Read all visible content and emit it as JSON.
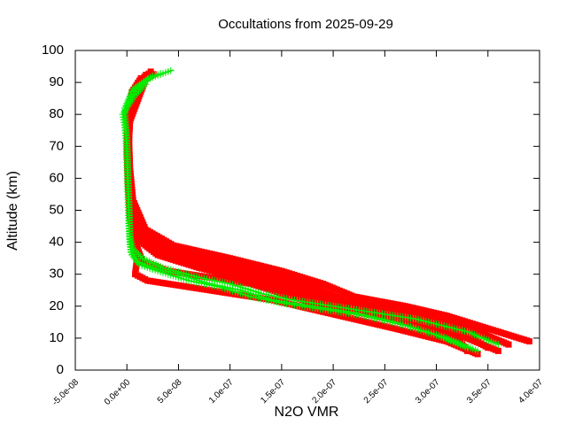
{
  "chart_data": {
    "type": "scatter",
    "title": "Occultations from 2025-09-29",
    "xlabel": "N2O VMR",
    "ylabel": "Altitude (km)",
    "xlim": [
      -5e-08,
      4e-07
    ],
    "ylim": [
      0,
      100
    ],
    "x_ticks": [
      -5e-08,
      0,
      5e-08,
      1e-07,
      1.5e-07,
      2e-07,
      2.5e-07,
      3e-07,
      3.5e-07,
      4e-07
    ],
    "x_tick_labels": [
      "-5.0e-08",
      "0.0e+00",
      "5.0e-08",
      "1.0e-07",
      "1.5e-07",
      "2.0e-07",
      "2.5e-07",
      "3.0e-07",
      "3.5e-07",
      "4.0e-07"
    ],
    "y_ticks": [
      0,
      10,
      20,
      30,
      40,
      50,
      60,
      70,
      80,
      90,
      100
    ],
    "y_tick_labels": [
      "0",
      "10",
      "20",
      "30",
      "40",
      "50",
      "60",
      "70",
      "80",
      "90",
      "100"
    ],
    "grid": false,
    "legend": false,
    "series": [
      {
        "marker": "square",
        "color": "#ff0000",
        "profiles": [
          [
            [
              3.3e-07,
              6
            ],
            [
              3.2e-07,
              10
            ],
            [
              2.8e-07,
              14
            ],
            [
              2.4e-07,
              17
            ],
            [
              1.95e-07,
              20
            ],
            [
              1.6e-07,
              24
            ],
            [
              1.2e-07,
              28
            ],
            [
              7e-08,
              32
            ],
            [
              3e-08,
              36
            ],
            [
              1e-08,
              41
            ],
            [
              3e-09,
              50
            ],
            [
              1e-09,
              60
            ],
            [
              0,
              70
            ],
            [
              1e-09,
              80
            ],
            [
              5e-09,
              87
            ],
            [
              1.5e-08,
              92
            ]
          ],
          [
            [
              3.5e-07,
              7
            ],
            [
              3.3e-07,
              11
            ],
            [
              2.9e-07,
              15
            ],
            [
              2.5e-07,
              18
            ],
            [
              2.05e-07,
              21
            ],
            [
              1.7e-07,
              25
            ],
            [
              1.3e-07,
              29
            ],
            [
              8e-08,
              33
            ],
            [
              3.5e-08,
              37
            ],
            [
              1.2e-08,
              42
            ],
            [
              4e-09,
              50
            ],
            [
              2e-09,
              60
            ],
            [
              1e-09,
              70
            ],
            [
              2e-09,
              80
            ],
            [
              8e-09,
              88
            ],
            [
              2e-08,
              93
            ]
          ],
          [
            [
              3.7e-07,
              8
            ],
            [
              3.4e-07,
              12
            ],
            [
              3e-07,
              16
            ],
            [
              2.6e-07,
              19
            ],
            [
              2.1e-07,
              22
            ],
            [
              1.8e-07,
              26
            ],
            [
              1.4e-07,
              30
            ],
            [
              9e-08,
              34
            ],
            [
              4e-08,
              38
            ],
            [
              1.5e-08,
              43
            ],
            [
              5e-09,
              52
            ],
            [
              2e-09,
              62
            ],
            [
              1e-09,
              72
            ],
            [
              3e-09,
              82
            ],
            [
              1e-08,
              89
            ],
            [
              2.5e-08,
              94
            ]
          ],
          [
            [
              3.9e-07,
              9
            ],
            [
              3.5e-07,
              13
            ],
            [
              3.1e-07,
              17
            ],
            [
              2.7e-07,
              20
            ],
            [
              2.2e-07,
              23
            ],
            [
              1.9e-07,
              27
            ],
            [
              1.5e-07,
              31
            ],
            [
              1e-07,
              35
            ],
            [
              4.5e-08,
              39
            ],
            [
              1.8e-08,
              44
            ],
            [
              6e-09,
              53
            ],
            [
              3e-09,
              63
            ],
            [
              2e-09,
              73
            ],
            [
              4e-09,
              83
            ],
            [
              1.2e-08,
              90
            ],
            [
              2.8e-08,
              93
            ]
          ],
          [
            [
              3.4e-07,
              5
            ],
            [
              3.1e-07,
              9
            ],
            [
              2.6e-07,
              13
            ],
            [
              2.2e-07,
              16
            ],
            [
              1.8e-07,
              19
            ],
            [
              1.4e-07,
              22
            ],
            [
              1e-07,
              24
            ],
            [
              6e-08,
              26
            ],
            [
              2e-08,
              28
            ],
            [
              8e-09,
              30
            ],
            [
              1e-08,
              35
            ],
            [
              5e-09,
              45
            ],
            [
              2e-09,
              55
            ],
            [
              1e-09,
              65
            ],
            [
              3e-09,
              78
            ],
            [
              1.8e-08,
              91
            ]
          ],
          [
            [
              3.6e-07,
              6
            ],
            [
              3.3e-07,
              10
            ],
            [
              2.8e-07,
              15
            ],
            [
              2.3e-07,
              18
            ],
            [
              1.9e-07,
              20
            ],
            [
              1.6e-07,
              23
            ],
            [
              1.2e-07,
              27
            ],
            [
              8e-08,
              29
            ],
            [
              4e-08,
              31
            ],
            [
              1.5e-08,
              34
            ],
            [
              8e-09,
              40
            ],
            [
              3e-09,
              48
            ],
            [
              1e-09,
              58
            ],
            [
              0,
              68
            ],
            [
              2e-09,
              79
            ],
            [
              1e-08,
              86
            ]
          ]
        ]
      },
      {
        "marker": "plus",
        "color": "#00ee00",
        "profiles": [
          [
            [
              3.4e-07,
              6
            ],
            [
              3.1e-07,
              10
            ],
            [
              2.7e-07,
              14
            ],
            [
              2.3e-07,
              17
            ],
            [
              1.9e-07,
              19
            ],
            [
              1.5e-07,
              21
            ],
            [
              1.2e-07,
              23
            ],
            [
              9e-08,
              26
            ],
            [
              6e-08,
              28
            ],
            [
              3e-08,
              31
            ],
            [
              1.2e-08,
              33
            ],
            [
              5e-09,
              36
            ],
            [
              3e-09,
              40
            ],
            [
              2e-09,
              50
            ],
            [
              1e-09,
              60
            ],
            [
              0,
              70
            ],
            [
              -3e-09,
              80
            ],
            [
              5e-09,
              87
            ],
            [
              2e-08,
              91
            ],
            [
              4.5e-08,
              94
            ]
          ],
          [
            [
              3.6e-07,
              8
            ],
            [
              3.3e-07,
              12
            ],
            [
              2.8e-07,
              16
            ],
            [
              2.4e-07,
              18
            ],
            [
              2e-07,
              20
            ],
            [
              1.6e-07,
              22
            ],
            [
              1.3e-07,
              24
            ],
            [
              1e-07,
              27
            ],
            [
              7e-08,
              29
            ],
            [
              3.5e-08,
              32
            ],
            [
              1.5e-08,
              35
            ],
            [
              6e-09,
              38
            ],
            [
              3e-09,
              42
            ],
            [
              2e-09,
              52
            ],
            [
              1e-09,
              62
            ],
            [
              0,
              72
            ],
            [
              -2e-09,
              82
            ],
            [
              6e-09,
              88
            ],
            [
              2.5e-08,
              92
            ],
            [
              3.5e-08,
              93
            ]
          ],
          [
            [
              3.3e-07,
              7
            ],
            [
              3e-07,
              11
            ],
            [
              2.6e-07,
              15
            ],
            [
              2.2e-07,
              18
            ],
            [
              1.8e-07,
              20
            ],
            [
              1.4e-07,
              22
            ],
            [
              1.1e-07,
              25
            ],
            [
              8e-08,
              27
            ],
            [
              5e-08,
              30
            ],
            [
              2.5e-08,
              32
            ],
            [
              1e-08,
              34
            ],
            [
              4e-09,
              37
            ],
            [
              2e-09,
              45
            ],
            [
              1e-09,
              55
            ],
            [
              0,
              65
            ],
            [
              -1e-09,
              75
            ],
            [
              -4e-09,
              80
            ],
            [
              8e-09,
              86
            ],
            [
              2e-08,
              90
            ]
          ]
        ]
      }
    ]
  }
}
